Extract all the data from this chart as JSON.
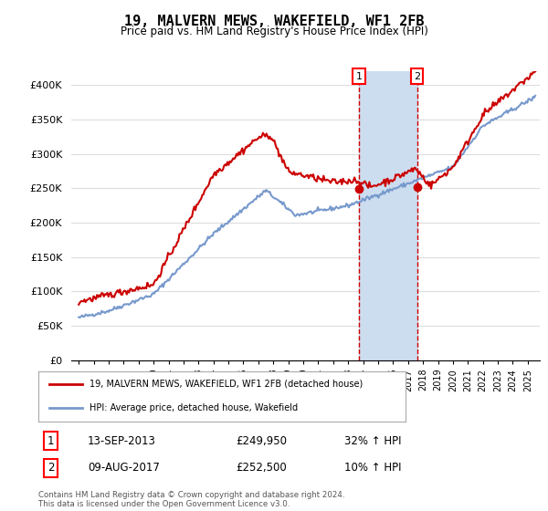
{
  "title": "19, MALVERN MEWS, WAKEFIELD, WF1 2FB",
  "subtitle": "Price paid vs. HM Land Registry's House Price Index (HPI)",
  "ylim": [
    0,
    420000
  ],
  "yticks": [
    0,
    50000,
    100000,
    150000,
    200000,
    250000,
    300000,
    350000,
    400000
  ],
  "ytick_labels": [
    "£0",
    "£50K",
    "£100K",
    "£150K",
    "£200K",
    "£250K",
    "£300K",
    "£350K",
    "£400K"
  ],
  "background_color": "#ffffff",
  "grid_color": "#dddddd",
  "sale1_year": 2013.71,
  "sale1_price": 249950,
  "sale1_label": "1",
  "sale1_date_str": "13-SEP-2013",
  "sale1_hpi": "32% ↑ HPI",
  "sale1_price_str": "£249,950",
  "sale2_year": 2017.6,
  "sale2_price": 252500,
  "sale2_label": "2",
  "sale2_date_str": "09-AUG-2017",
  "sale2_hpi": "10% ↑ HPI",
  "sale2_price_str": "£252,500",
  "legend_line1": "19, MALVERN MEWS, WAKEFIELD, WF1 2FB (detached house)",
  "legend_line2": "HPI: Average price, detached house, Wakefield",
  "footnote": "Contains HM Land Registry data © Crown copyright and database right 2024.\nThis data is licensed under the Open Government Licence v3.0.",
  "hpi_color": "#7799cc",
  "price_color": "#cc0000",
  "shaded_region_color": "#ccddf0",
  "marker_color": "#cc0000"
}
